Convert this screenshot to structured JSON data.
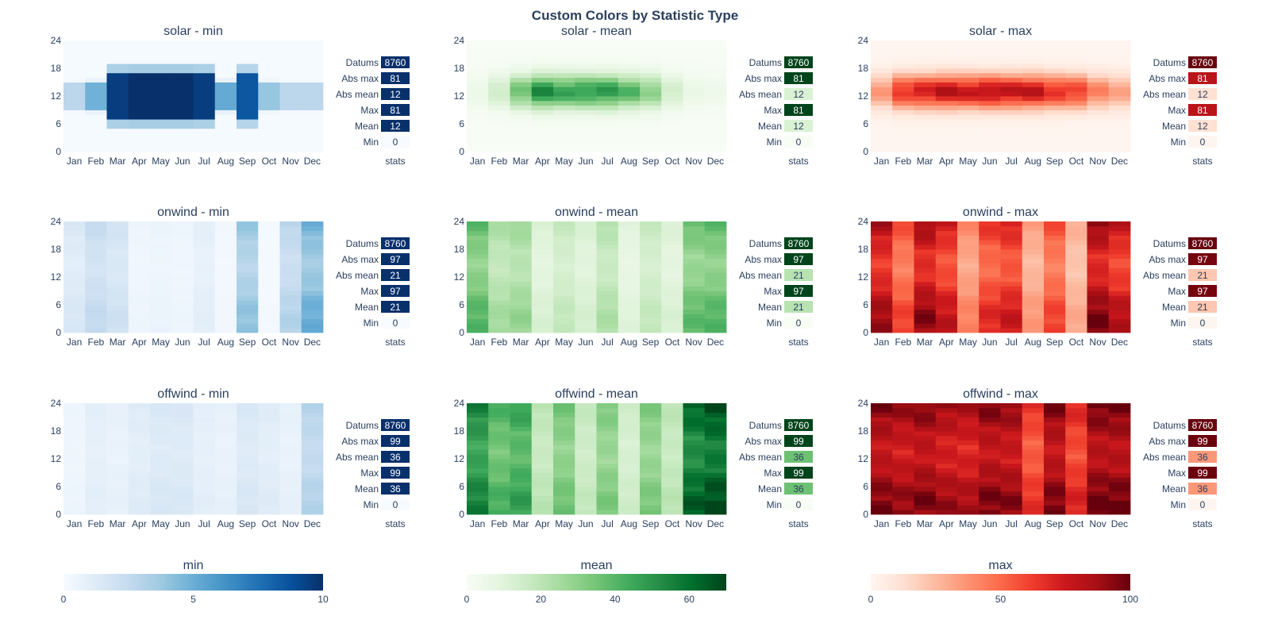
{
  "title": "Custom Colors by Statistic Type",
  "chart_data": {
    "type": "heatmap",
    "title": "Custom Colors by Statistic Type",
    "x_categories": [
      "Jan",
      "Feb",
      "Mar",
      "Apr",
      "May",
      "Jun",
      "Jul",
      "Aug",
      "Sep",
      "Oct",
      "Nov",
      "Dec"
    ],
    "y_ticks": [
      0,
      6,
      12,
      18,
      24
    ],
    "ylim": [
      0,
      24
    ],
    "stat_labels": [
      "Datums",
      "Abs max",
      "Abs mean",
      "Max",
      "Mean",
      "Min"
    ],
    "stat_xlabel": "stats",
    "colorscales": {
      "min": {
        "name": "min",
        "colors": [
          "#f7fbff",
          "#deebf7",
          "#c6dbef",
          "#9ecae1",
          "#6baed6",
          "#4292c6",
          "#2171b5",
          "#08519c",
          "#08306b"
        ],
        "range": [
          0,
          10
        ],
        "ticks": [
          0,
          5,
          10
        ]
      },
      "mean": {
        "name": "mean",
        "colors": [
          "#f7fcf5",
          "#e5f5e0",
          "#c7e9c0",
          "#a1d99b",
          "#74c476",
          "#41ab5d",
          "#238b45",
          "#006d2c",
          "#00441b"
        ],
        "range": [
          0,
          70
        ],
        "ticks": [
          0,
          20,
          40,
          60
        ]
      },
      "max": {
        "name": "max",
        "colors": [
          "#fff5f0",
          "#fee0d2",
          "#fcbba1",
          "#fc9272",
          "#fb6a4a",
          "#ef3b2c",
          "#cb181d",
          "#a50f15",
          "#67000d"
        ],
        "range": [
          0,
          100
        ],
        "ticks": [
          0,
          50,
          100
        ]
      }
    },
    "panels": [
      {
        "title": "solar - min",
        "carrier": "solar",
        "stat": "min",
        "stats": [
          8760,
          81,
          12,
          81,
          12,
          0
        ]
      },
      {
        "title": "solar - mean",
        "carrier": "solar",
        "stat": "mean",
        "stats": [
          8760,
          81,
          12,
          81,
          12,
          0
        ]
      },
      {
        "title": "solar - max",
        "carrier": "solar",
        "stat": "max",
        "stats": [
          8760,
          81,
          12,
          81,
          12,
          0
        ]
      },
      {
        "title": "onwind - min",
        "carrier": "onwind",
        "stat": "min",
        "stats": [
          8760,
          97,
          21,
          97,
          21,
          0
        ]
      },
      {
        "title": "onwind - mean",
        "carrier": "onwind",
        "stat": "mean",
        "stats": [
          8760,
          97,
          21,
          97,
          21,
          0
        ]
      },
      {
        "title": "onwind - max",
        "carrier": "onwind",
        "stat": "max",
        "stats": [
          8760,
          97,
          21,
          97,
          21,
          0
        ]
      },
      {
        "title": "offwind - min",
        "carrier": "offwind",
        "stat": "min",
        "stats": [
          8760,
          99,
          36,
          99,
          36,
          0
        ]
      },
      {
        "title": "offwind - mean",
        "carrier": "offwind",
        "stat": "mean",
        "stats": [
          8760,
          99,
          36,
          99,
          36,
          0
        ]
      },
      {
        "title": "offwind - max",
        "carrier": "offwind",
        "stat": "max",
        "stats": [
          8760,
          99,
          36,
          99,
          36,
          0
        ]
      }
    ],
    "monthly_levels": {
      "solar": {
        "min": [
          0.5,
          1.8,
          9.5,
          10,
          10,
          10,
          9.5,
          2.0,
          8.5,
          1.2,
          0.5,
          0.5
        ],
        "mean": [
          5,
          15,
          35,
          52,
          46,
          47,
          48,
          40,
          30,
          14,
          6,
          4
        ],
        "max": [
          35,
          65,
          72,
          80,
          76,
          80,
          78,
          78,
          66,
          62,
          42,
          32
        ]
      },
      "onwind": {
        "min": [
          1.5,
          2.5,
          2.0,
          0.5,
          0.6,
          0.5,
          1.0,
          0.3,
          4.0,
          0.2,
          3.0,
          5.0
        ],
        "mean": [
          40,
          25,
          28,
          12,
          18,
          13,
          23,
          10,
          18,
          12,
          38,
          40
        ],
        "max": [
          88,
          60,
          92,
          78,
          42,
          68,
          75,
          35,
          60,
          30,
          95,
          82
        ]
      },
      "offwind": {
        "min": [
          0.5,
          1.0,
          0.8,
          1.2,
          1.5,
          1.5,
          1.0,
          0.8,
          1.5,
          1.2,
          0.8,
          3.0
        ],
        "mean": [
          55,
          42,
          47,
          20,
          35,
          18,
          33,
          15,
          33,
          20,
          63,
          68
        ],
        "max": [
          95,
          90,
          95,
          88,
          85,
          95,
          92,
          65,
          95,
          70,
          98,
          98
        ]
      }
    }
  }
}
